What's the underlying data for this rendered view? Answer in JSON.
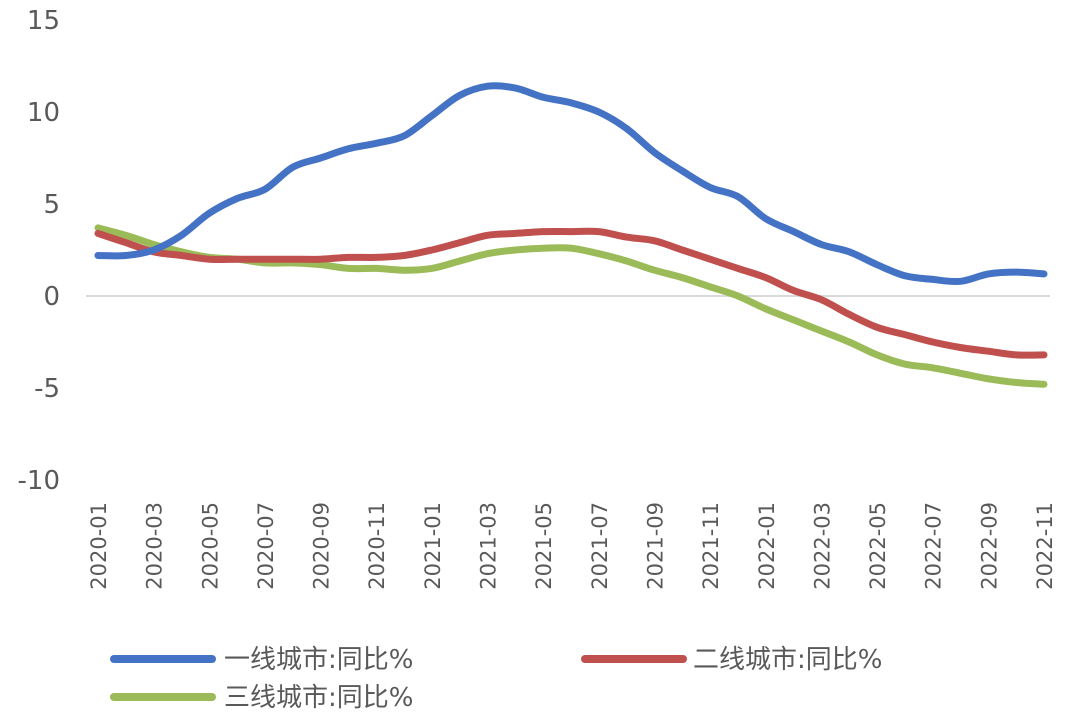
{
  "chart_data": {
    "type": "line",
    "title": "",
    "xlabel": "",
    "ylabel": "",
    "ylim": [
      -10,
      15
    ],
    "yticks": [
      "15",
      "10",
      "5",
      "0",
      "-5",
      "-10"
    ],
    "x": [
      "2020-01",
      "2020-02",
      "2020-03",
      "2020-04",
      "2020-05",
      "2020-06",
      "2020-07",
      "2020-08",
      "2020-09",
      "2020-10",
      "2020-11",
      "2020-12",
      "2021-01",
      "2021-02",
      "2021-03",
      "2021-04",
      "2021-05",
      "2021-06",
      "2021-07",
      "2021-08",
      "2021-09",
      "2021-10",
      "2021-11",
      "2021-12",
      "2022-01",
      "2022-02",
      "2022-03",
      "2022-04",
      "2022-05",
      "2022-06",
      "2022-07",
      "2022-08",
      "2022-09",
      "2022-10",
      "2022-11"
    ],
    "xtick_labels": [
      "2020-01",
      "2020-03",
      "2020-05",
      "2020-07",
      "2020-09",
      "2020-11",
      "2021-01",
      "2021-03",
      "2021-05",
      "2021-07",
      "2021-09",
      "2021-11",
      "2022-01",
      "2022-03",
      "2022-05",
      "2022-07",
      "2022-09",
      "2022-11"
    ],
    "grid": false,
    "legend_position": "bottom",
    "series": [
      {
        "name": "一线城市:同比%",
        "color": "#4472C4",
        "values": [
          2.2,
          2.2,
          2.5,
          3.3,
          4.5,
          5.3,
          5.8,
          7.0,
          7.5,
          8.0,
          8.3,
          8.7,
          9.8,
          10.9,
          11.4,
          11.3,
          10.8,
          10.5,
          10.0,
          9.1,
          7.8,
          6.8,
          5.9,
          5.4,
          4.2,
          3.5,
          2.8,
          2.4,
          1.7,
          1.1,
          0.9,
          0.8,
          1.2,
          1.3,
          1.2
        ]
      },
      {
        "name": "二线城市:同比%",
        "color": "#C0504D",
        "values": [
          3.4,
          2.9,
          2.4,
          2.2,
          2.0,
          2.0,
          2.0,
          2.0,
          2.0,
          2.1,
          2.1,
          2.2,
          2.5,
          2.9,
          3.3,
          3.4,
          3.5,
          3.5,
          3.5,
          3.2,
          3.0,
          2.5,
          2.0,
          1.5,
          1.0,
          0.3,
          -0.2,
          -1.0,
          -1.7,
          -2.1,
          -2.5,
          -2.8,
          -3.0,
          -3.2,
          -3.2
        ]
      },
      {
        "name": "三线城市:同比%",
        "color": "#9BBB59",
        "values": [
          3.7,
          3.3,
          2.8,
          2.4,
          2.1,
          2.0,
          1.8,
          1.8,
          1.7,
          1.5,
          1.5,
          1.4,
          1.5,
          1.9,
          2.3,
          2.5,
          2.6,
          2.6,
          2.3,
          1.9,
          1.4,
          1.0,
          0.5,
          0.0,
          -0.7,
          -1.3,
          -1.9,
          -2.5,
          -3.2,
          -3.7,
          -3.9,
          -4.2,
          -4.5,
          -4.7,
          -4.8
        ]
      }
    ]
  }
}
